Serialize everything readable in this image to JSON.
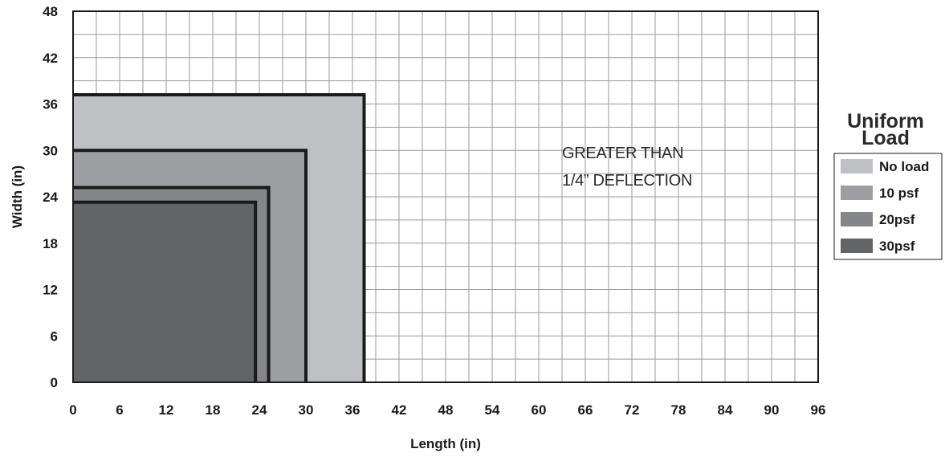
{
  "chart_data": {
    "type": "area",
    "xlabel": "Length (in)",
    "ylabel": "Width (in)",
    "xlim": [
      0,
      96
    ],
    "ylim": [
      0,
      48
    ],
    "x_ticks": [
      "0",
      "6",
      "12",
      "18",
      "24",
      "30",
      "36",
      "42",
      "48",
      "54",
      "60",
      "66",
      "72",
      "78",
      "84",
      "90",
      "96"
    ],
    "y_ticks": [
      "0",
      "6",
      "12",
      "18",
      "24",
      "30",
      "36",
      "42",
      "48"
    ],
    "x_tick_values": [
      0,
      6,
      12,
      18,
      24,
      30,
      36,
      42,
      48,
      54,
      60,
      66,
      72,
      78,
      84,
      90,
      96
    ],
    "y_tick_values": [
      0,
      6,
      12,
      18,
      24,
      30,
      36,
      42,
      48
    ],
    "grid": true,
    "annotation": [
      "GREATER THAN",
      "1/4” DEFLECTION"
    ],
    "annotation_at": {
      "x": 63,
      "y": 29
    },
    "legend": {
      "title": [
        "Uniform",
        "Load"
      ],
      "placement": "right"
    },
    "series": [
      {
        "name": "No load",
        "max_length": 37.5,
        "max_width": 37.2,
        "color": "#bfc0c3"
      },
      {
        "name": "10 psf",
        "max_length": 30.0,
        "max_width": 30.0,
        "color": "#9d9ea1"
      },
      {
        "name": "20psf",
        "max_length": 25.2,
        "max_width": 25.2,
        "color": "#858689"
      },
      {
        "name": "30psf",
        "max_length": 23.5,
        "max_width": 23.3,
        "color": "#636466"
      }
    ]
  }
}
